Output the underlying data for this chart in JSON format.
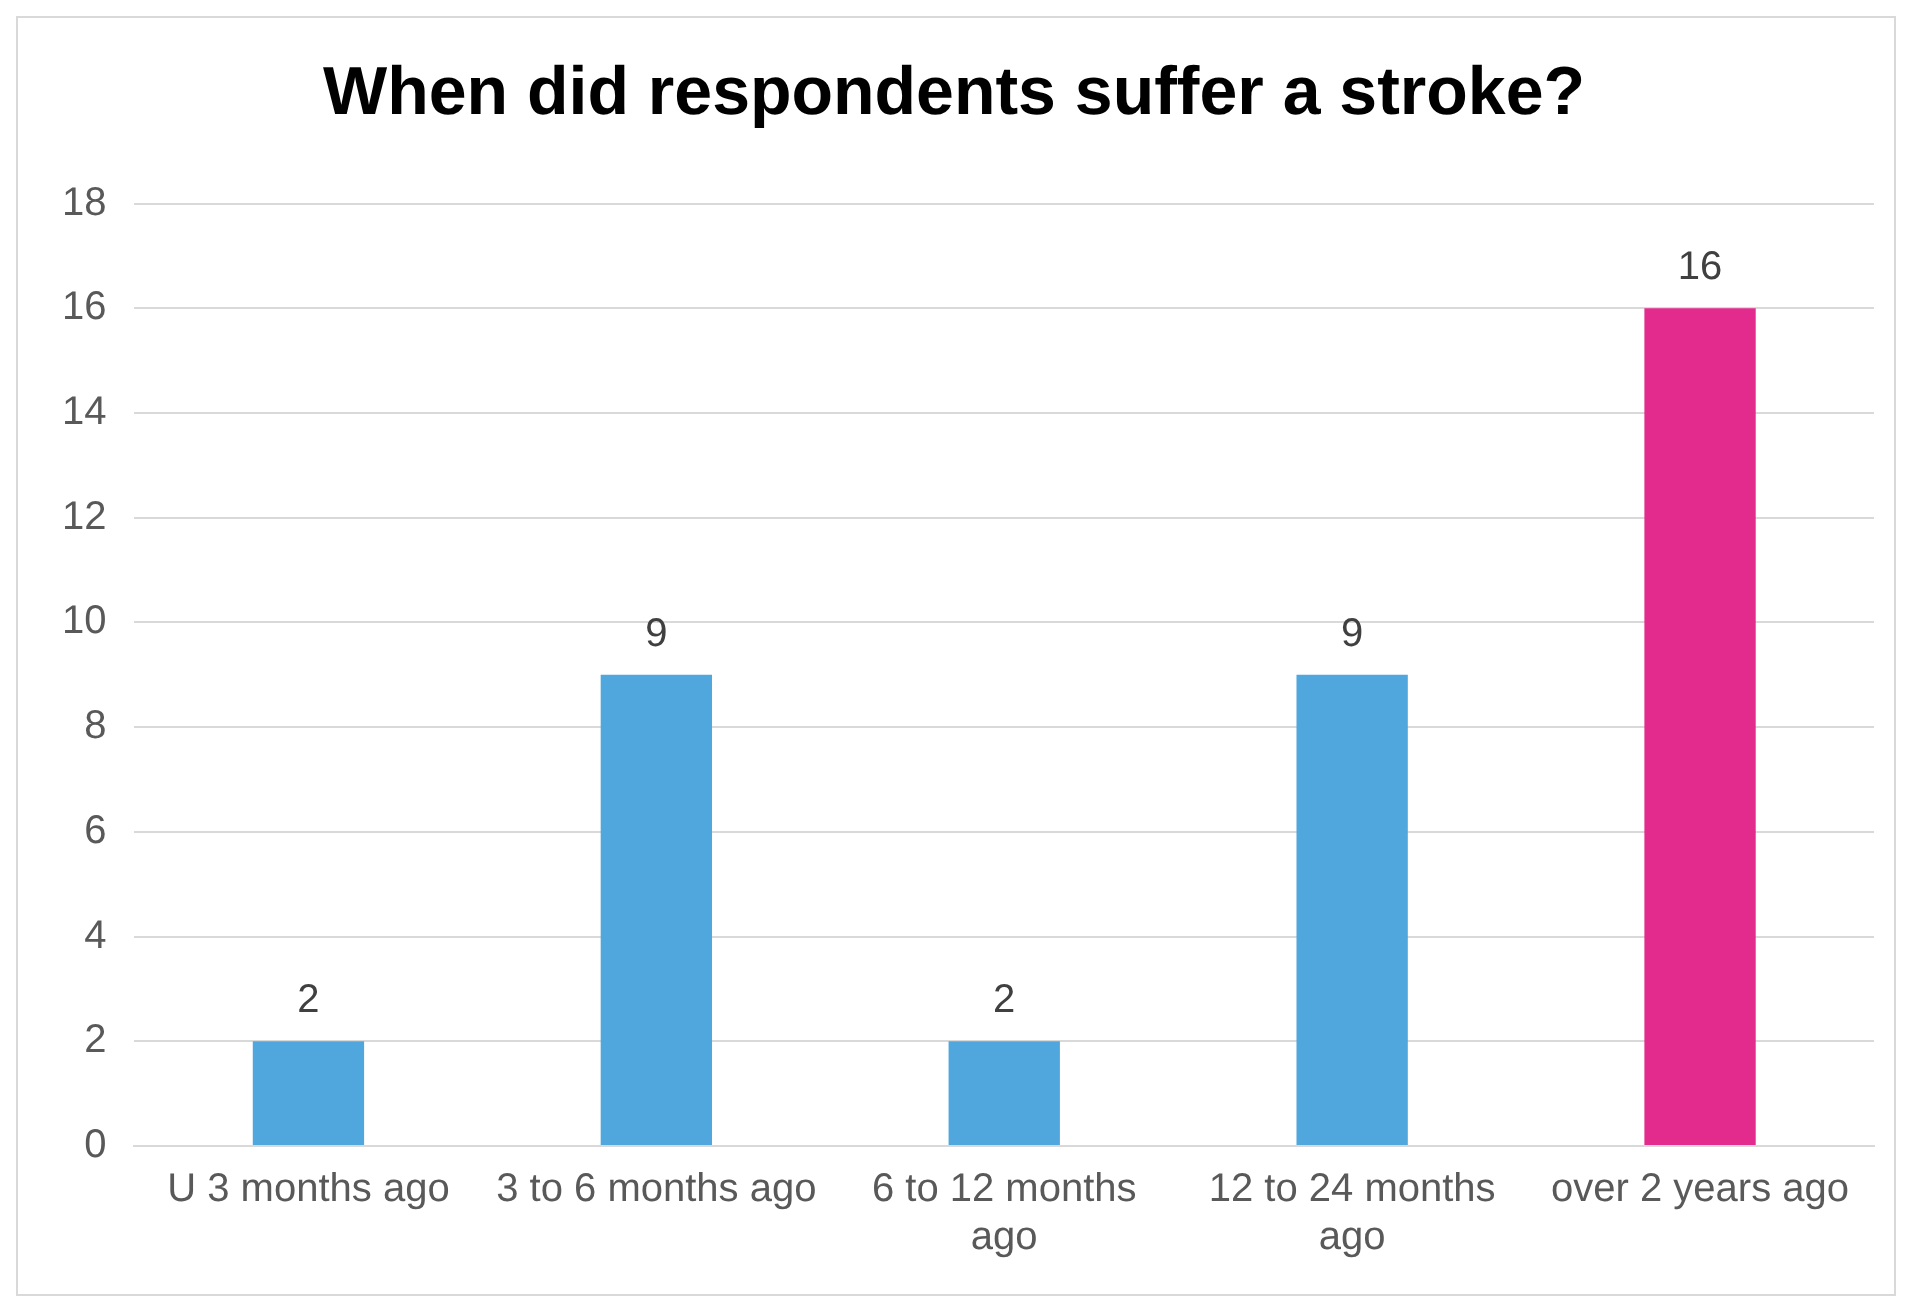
{
  "chart_data": {
    "type": "bar",
    "title": "When did respondents suffer a stroke?",
    "categories": [
      "U 3 months ago",
      "3 to 6 months ago",
      "6 to 12 months ago",
      "12 to 24 months ago",
      "over 2 years ago"
    ],
    "values": [
      2,
      9,
      2,
      9,
      16
    ],
    "colors": [
      "#4fa7dd",
      "#4fa7dd",
      "#4fa7dd",
      "#4fa7dd",
      "#e32b8e"
    ],
    "ylim": [
      0,
      18
    ],
    "yticks": [
      0,
      2,
      4,
      6,
      8,
      10,
      12,
      14,
      16,
      18
    ],
    "grid": "y",
    "legend": false,
    "data_labels": true
  }
}
